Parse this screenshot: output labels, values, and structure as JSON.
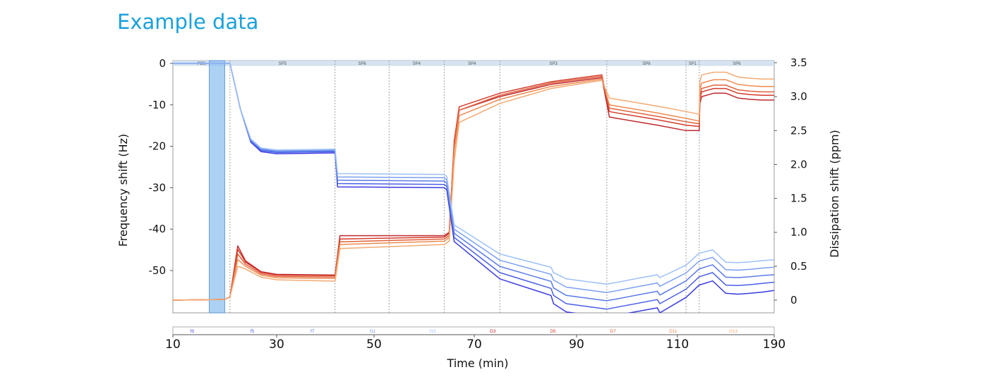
{
  "page": {
    "title": "Example data"
  },
  "chart_data": {
    "type": "line",
    "title": "",
    "xlabel": "Time (min)",
    "ylabel_left": "Frequency shift (Hz)",
    "ylabel_right": "Dissipation shift (ppm)",
    "xlim": [
      10,
      190
    ],
    "ylim_left": [
      -60,
      0
    ],
    "ylim_right": [
      0,
      3.5
    ],
    "xticks": [
      10,
      30,
      50,
      70,
      90,
      110,
      190
    ],
    "yticks_left": [
      0,
      -10,
      -20,
      -30,
      -40,
      -50
    ],
    "yticks_right": [
      3.5,
      3.0,
      2.5,
      2.0,
      1.5,
      1.0,
      0.5,
      0
    ],
    "highlight_band": {
      "x_start": 17,
      "x_end": 20,
      "color": "#8fc1ef"
    },
    "segments": [
      {
        "label": "PBS",
        "x_start": 10,
        "x_end": 21
      },
      {
        "label": "SP5",
        "x_start": 21,
        "x_end": 42
      },
      {
        "label": "SP6",
        "x_start": 42,
        "x_end": 53
      },
      {
        "label": "SP4",
        "x_start": 53,
        "x_end": 64
      },
      {
        "label": "SP4",
        "x_start": 64,
        "x_end": 75
      },
      {
        "label": "SP3",
        "x_start": 75,
        "x_end": 96
      },
      {
        "label": "SP6",
        "x_start": 96,
        "x_end": 117
      },
      {
        "label": "SP1",
        "x_start": 117,
        "x_end": 128
      },
      {
        "label": "SP6",
        "x_start": 128,
        "x_end": 190
      }
    ],
    "legend": [
      {
        "label": "f3",
        "color": "#3a3ae0"
      },
      {
        "label": "f5",
        "color": "#4a5fe6"
      },
      {
        "label": "f7",
        "color": "#5a7be8"
      },
      {
        "label": "f11",
        "color": "#7a9ff0"
      },
      {
        "label": "f13",
        "color": "#9cc0f5"
      },
      {
        "label": "D3",
        "color": "#c0282e"
      },
      {
        "label": "D5",
        "color": "#d33b2c"
      },
      {
        "label": "D7",
        "color": "#e0603a"
      },
      {
        "label": "D11",
        "color": "#ee8a4e"
      },
      {
        "label": "D13",
        "color": "#f2aa72"
      }
    ],
    "frequency_series": [
      {
        "name": "f3",
        "color": "#3a3ae0",
        "x": [
          10,
          20,
          21,
          23,
          25,
          27,
          30,
          42,
          42.5,
          64,
          64.5,
          66,
          75,
          85,
          85.5,
          88,
          96,
          106,
          106.5,
          117,
          128,
          139,
          150,
          160,
          170,
          180,
          190
        ],
        "y": [
          0,
          0,
          0,
          -11,
          -19,
          -21.3,
          -21.8,
          -21.6,
          -29.8,
          -30,
          -30.5,
          -43,
          -52,
          -56,
          -58,
          -60,
          -61.2,
          -59,
          -60.2,
          -56.5,
          -53.5,
          -52.5,
          -55.5,
          -55.7,
          -55.5,
          -55.2,
          -54.8
        ]
      },
      {
        "name": "f5",
        "color": "#4a5fe6",
        "x": [
          10,
          20,
          21,
          23,
          25,
          27,
          30,
          42,
          42.5,
          64,
          64.5,
          66,
          75,
          85,
          85.5,
          88,
          96,
          106,
          106.5,
          117,
          128,
          139,
          150,
          160,
          170,
          180,
          190
        ],
        "y": [
          0,
          0,
          0,
          -11,
          -18.8,
          -21,
          -21.5,
          -21.3,
          -29,
          -29.2,
          -29.7,
          -42,
          -50.5,
          -54.3,
          -56,
          -58,
          -59.3,
          -57,
          -58,
          -54.5,
          -51.5,
          -50.5,
          -53.5,
          -53.6,
          -53.4,
          -53.1,
          -52.8
        ]
      },
      {
        "name": "f7",
        "color": "#5a7be8",
        "x": [
          10,
          20,
          21,
          23,
          25,
          27,
          30,
          42,
          42.5,
          64,
          64.5,
          66,
          75,
          85,
          85.5,
          88,
          96,
          106,
          106.5,
          117,
          128,
          139,
          150,
          160,
          170,
          180,
          190
        ],
        "y": [
          0,
          0,
          0,
          -11,
          -18.6,
          -20.8,
          -21.3,
          -21.1,
          -28.2,
          -28.4,
          -28.9,
          -41,
          -49,
          -52.6,
          -54.2,
          -56,
          -57.3,
          -55,
          -55.9,
          -52.5,
          -49.6,
          -48.6,
          -51.6,
          -51.7,
          -51.5,
          -51.2,
          -51
        ]
      },
      {
        "name": "f11",
        "color": "#7a9ff0",
        "x": [
          10,
          20,
          21,
          23,
          25,
          27,
          30,
          42,
          42.5,
          64,
          64.5,
          66,
          75,
          85,
          85.5,
          88,
          96,
          106,
          106.5,
          117,
          128,
          139,
          150,
          160,
          170,
          180,
          190
        ],
        "y": [
          0,
          0,
          0,
          -11,
          -18.4,
          -20.6,
          -21.1,
          -20.9,
          -27.4,
          -27.6,
          -28.1,
          -40,
          -47.5,
          -50.9,
          -52.3,
          -54,
          -55.3,
          -53,
          -53.8,
          -50.6,
          -47.7,
          -46.8,
          -49.8,
          -49.9,
          -49.7,
          -49.4,
          -49.2
        ]
      },
      {
        "name": "f13",
        "color": "#9cc0f5",
        "x": [
          10,
          20,
          21,
          23,
          25,
          27,
          30,
          42,
          42.5,
          64,
          64.5,
          66,
          75,
          85,
          85.5,
          88,
          96,
          106,
          106.5,
          117,
          128,
          139,
          150,
          160,
          170,
          180,
          190
        ],
        "y": [
          0,
          0,
          0,
          -11,
          -18.2,
          -20.4,
          -20.9,
          -20.7,
          -26.6,
          -26.8,
          -27.3,
          -39,
          -46,
          -49.2,
          -50.5,
          -52,
          -53.3,
          -51,
          -51.7,
          -48.7,
          -45.8,
          -45,
          -48,
          -48.1,
          -47.9,
          -47.6,
          -47.4
        ]
      }
    ],
    "dissipation_series": [
      {
        "name": "D3",
        "color": "#c0282e",
        "x": [
          10,
          20,
          21,
          22.5,
          24,
          27,
          30,
          42,
          43,
          64,
          65,
          66,
          67,
          75,
          85,
          95,
          96.5,
          98,
          106,
          117,
          128,
          128.5,
          130,
          140,
          150,
          160,
          170,
          180,
          190
        ],
        "y": [
          0,
          0.01,
          0.05,
          0.8,
          0.58,
          0.42,
          0.38,
          0.37,
          0.95,
          0.95,
          1,
          2.3,
          2.8,
          3.0,
          3.18,
          3.28,
          2.7,
          2.68,
          2.58,
          2.5,
          2.5,
          2.9,
          3.0,
          3.05,
          3.05,
          2.98,
          2.96,
          2.95,
          2.95
        ]
      },
      {
        "name": "D5",
        "color": "#d33b2c",
        "x": [
          10,
          20,
          21,
          22.5,
          24,
          27,
          30,
          42,
          43,
          64,
          65,
          66,
          67,
          75,
          85,
          95,
          96.5,
          98,
          106,
          117,
          128,
          128.5,
          130,
          140,
          150,
          160,
          170,
          180,
          190
        ],
        "y": [
          0,
          0.01,
          0.05,
          0.75,
          0.56,
          0.41,
          0.37,
          0.36,
          0.9,
          0.93,
          0.98,
          2.35,
          2.85,
          3.05,
          3.22,
          3.32,
          2.78,
          2.76,
          2.66,
          2.58,
          2.56,
          2.97,
          3.07,
          3.12,
          3.12,
          3.05,
          3.03,
          3.02,
          3.02
        ]
      },
      {
        "name": "D7",
        "color": "#e0603a",
        "x": [
          10,
          20,
          21,
          22.5,
          24,
          27,
          30,
          42,
          43,
          64,
          65,
          66,
          67,
          75,
          85,
          95,
          96.5,
          98,
          106,
          117,
          128,
          128.5,
          130,
          140,
          150,
          160,
          170,
          180,
          190
        ],
        "y": [
          0,
          0.01,
          0.05,
          0.68,
          0.53,
          0.39,
          0.35,
          0.34,
          0.86,
          0.9,
          0.95,
          2.3,
          2.8,
          3.02,
          3.2,
          3.3,
          2.83,
          2.81,
          2.71,
          2.63,
          2.6,
          3.02,
          3.12,
          3.17,
          3.17,
          3.1,
          3.08,
          3.07,
          3.07
        ]
      },
      {
        "name": "D11",
        "color": "#ee8a4e",
        "x": [
          10,
          20,
          21,
          22.5,
          24,
          27,
          30,
          42,
          43,
          64,
          65,
          66,
          67,
          75,
          85,
          95,
          96.5,
          98,
          106,
          117,
          128,
          128.5,
          130,
          140,
          150,
          160,
          170,
          180,
          190
        ],
        "y": [
          0,
          0.01,
          0.05,
          0.6,
          0.5,
          0.37,
          0.33,
          0.32,
          0.82,
          0.87,
          0.92,
          2.2,
          2.72,
          2.96,
          3.15,
          3.26,
          2.88,
          2.86,
          2.76,
          2.68,
          2.64,
          3.1,
          3.2,
          3.25,
          3.25,
          3.18,
          3.16,
          3.15,
          3.15
        ]
      },
      {
        "name": "D13",
        "color": "#f2aa72",
        "x": [
          10,
          20,
          21,
          22.5,
          24,
          27,
          30,
          42,
          43,
          64,
          65,
          66,
          67,
          75,
          85,
          95,
          96.5,
          98,
          106,
          117,
          128,
          128.5,
          130,
          140,
          150,
          160,
          170,
          180,
          190
        ],
        "y": [
          0,
          0.01,
          0.05,
          0.5,
          0.46,
          0.34,
          0.3,
          0.28,
          0.76,
          0.82,
          0.87,
          2.05,
          2.62,
          2.9,
          3.12,
          3.24,
          2.98,
          2.96,
          2.86,
          2.78,
          2.74,
          3.22,
          3.32,
          3.36,
          3.36,
          3.29,
          3.27,
          3.26,
          3.26
        ]
      }
    ]
  }
}
